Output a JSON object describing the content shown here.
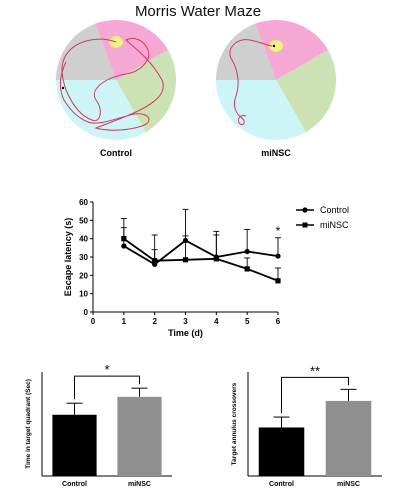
{
  "figure": {
    "title": "Morris Water Maze",
    "maze_labels": [
      "Control",
      "miNSC"
    ],
    "significance": {
      "latency_day6": "*",
      "quadrant": "*",
      "crossovers": "**"
    }
  },
  "colors": {
    "quadrant_pink": "#f5a8d3",
    "quadrant_green": "#cde2b4",
    "quadrant_cyan": "#cdf4f6",
    "quadrant_gray": "#cfcfcf",
    "platform": "#f3ef8e",
    "path": "#cf3b5c",
    "bar_control": "#000000",
    "bar_minsc": "#8f8f8f"
  },
  "chart_data": [
    {
      "type": "line",
      "x": [
        1,
        2,
        3,
        4,
        5,
        6
      ],
      "xlabel": "Time (d)",
      "ylabel": "Escape latency  (s)",
      "xlim": [
        0,
        6
      ],
      "ylim": [
        0,
        60
      ],
      "xticks": [
        0,
        1,
        2,
        3,
        4,
        5,
        6
      ],
      "yticks": [
        0,
        10,
        20,
        30,
        40,
        50,
        60
      ],
      "legend_position": "top-right",
      "series": [
        {
          "name": "Control",
          "marker": "circle",
          "values": [
            36,
            26,
            39,
            30,
            33,
            30.5
          ],
          "errors": [
            15,
            16,
            17,
            14,
            12,
            10
          ]
        },
        {
          "name": "miNSC",
          "marker": "square",
          "values": [
            40,
            28,
            28.5,
            29,
            23.5,
            17
          ],
          "errors": [
            6,
            6,
            13,
            13,
            6,
            7
          ]
        }
      ]
    },
    {
      "type": "bar",
      "categories": [
        "Control",
        "miNSC"
      ],
      "values": [
        10.6,
        13.7
      ],
      "errors": [
        2.0,
        1.5
      ],
      "ylabel": "Time in target quadrant  (Sec)",
      "ylim": [
        0,
        18
      ],
      "bar_colors": [
        "#000000",
        "#8f8f8f"
      ]
    },
    {
      "type": "bar",
      "categories": [
        "Control",
        "miNSC"
      ],
      "values": [
        4.2,
        6.5
      ],
      "errors": [
        0.9,
        1.0
      ],
      "ylabel": "Target annulus crossovers",
      "ylim": [
        0,
        9
      ],
      "bar_colors": [
        "#000000",
        "#8f8f8f"
      ]
    }
  ]
}
